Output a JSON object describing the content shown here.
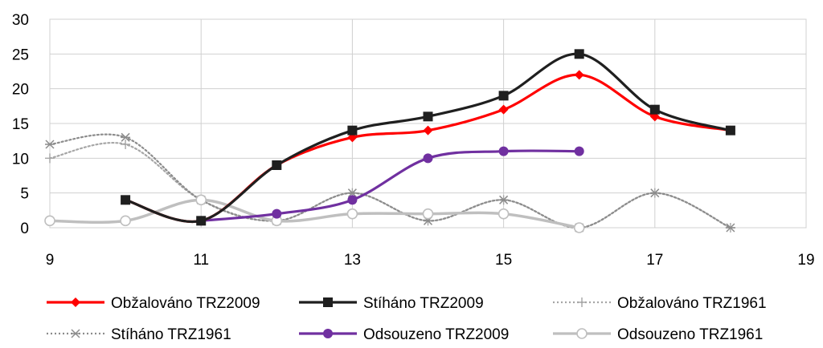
{
  "chart_data": {
    "type": "line",
    "title": "",
    "xlabel": "",
    "ylabel": "",
    "xlim": [
      9,
      19
    ],
    "ylim": [
      0,
      30
    ],
    "x_ticks": [
      9,
      11,
      13,
      15,
      17,
      19
    ],
    "y_ticks": [
      0,
      5,
      10,
      15,
      20,
      25,
      30
    ],
    "grid": true,
    "legend_position": "bottom",
    "series": [
      {
        "name": "Obžalováno TRZ2009",
        "color": "#ff0000",
        "style": "solid",
        "marker": "diamond",
        "points": [
          [
            10,
            4
          ],
          [
            11,
            1
          ],
          [
            12,
            9
          ],
          [
            13,
            13
          ],
          [
            14,
            14
          ],
          [
            15,
            17
          ],
          [
            16,
            22
          ],
          [
            17,
            16
          ],
          [
            18,
            14
          ]
        ]
      },
      {
        "name": "Stíháno TRZ2009",
        "color": "#1f1f1f",
        "style": "solid",
        "marker": "square",
        "points": [
          [
            10,
            4
          ],
          [
            11,
            1
          ],
          [
            12,
            9
          ],
          [
            13,
            14
          ],
          [
            14,
            16
          ],
          [
            15,
            19
          ],
          [
            16,
            25
          ],
          [
            17,
            17
          ],
          [
            18,
            14
          ]
        ]
      },
      {
        "name": "Obžalováno TRZ1961",
        "color": "#a6a6a6",
        "style": "dotted",
        "marker": "plus",
        "points": [
          [
            9,
            10
          ],
          [
            10,
            12
          ],
          [
            11,
            4
          ],
          [
            12,
            1
          ],
          [
            13,
            5
          ],
          [
            14,
            1
          ],
          [
            15,
            4
          ],
          [
            16,
            0
          ],
          [
            17,
            5
          ],
          [
            18,
            0
          ]
        ]
      },
      {
        "name": "Stíháno TRZ1961",
        "color": "#8c8c8c",
        "style": "dotted",
        "marker": "asterisk",
        "points": [
          [
            9,
            12
          ],
          [
            10,
            13
          ],
          [
            11,
            4
          ],
          [
            12,
            1
          ],
          [
            13,
            5
          ],
          [
            14,
            1
          ],
          [
            15,
            4
          ],
          [
            16,
            0
          ],
          [
            17,
            5
          ],
          [
            18,
            0
          ]
        ]
      },
      {
        "name": "Odsouzeno TRZ2009",
        "color": "#7030a0",
        "style": "solid",
        "marker": "circle",
        "points": [
          [
            11,
            1
          ],
          [
            12,
            2
          ],
          [
            13,
            4
          ],
          [
            14,
            10
          ],
          [
            15,
            11
          ],
          [
            16,
            11
          ]
        ]
      },
      {
        "name": "Odsouzeno TRZ1961",
        "color": "#bfbfbf",
        "style": "solid",
        "marker": "open-circle",
        "points": [
          [
            9,
            1
          ],
          [
            10,
            1
          ],
          [
            11,
            4
          ],
          [
            12,
            1
          ],
          [
            13,
            2
          ],
          [
            14,
            2
          ],
          [
            15,
            2
          ],
          [
            16,
            0
          ]
        ]
      }
    ]
  }
}
